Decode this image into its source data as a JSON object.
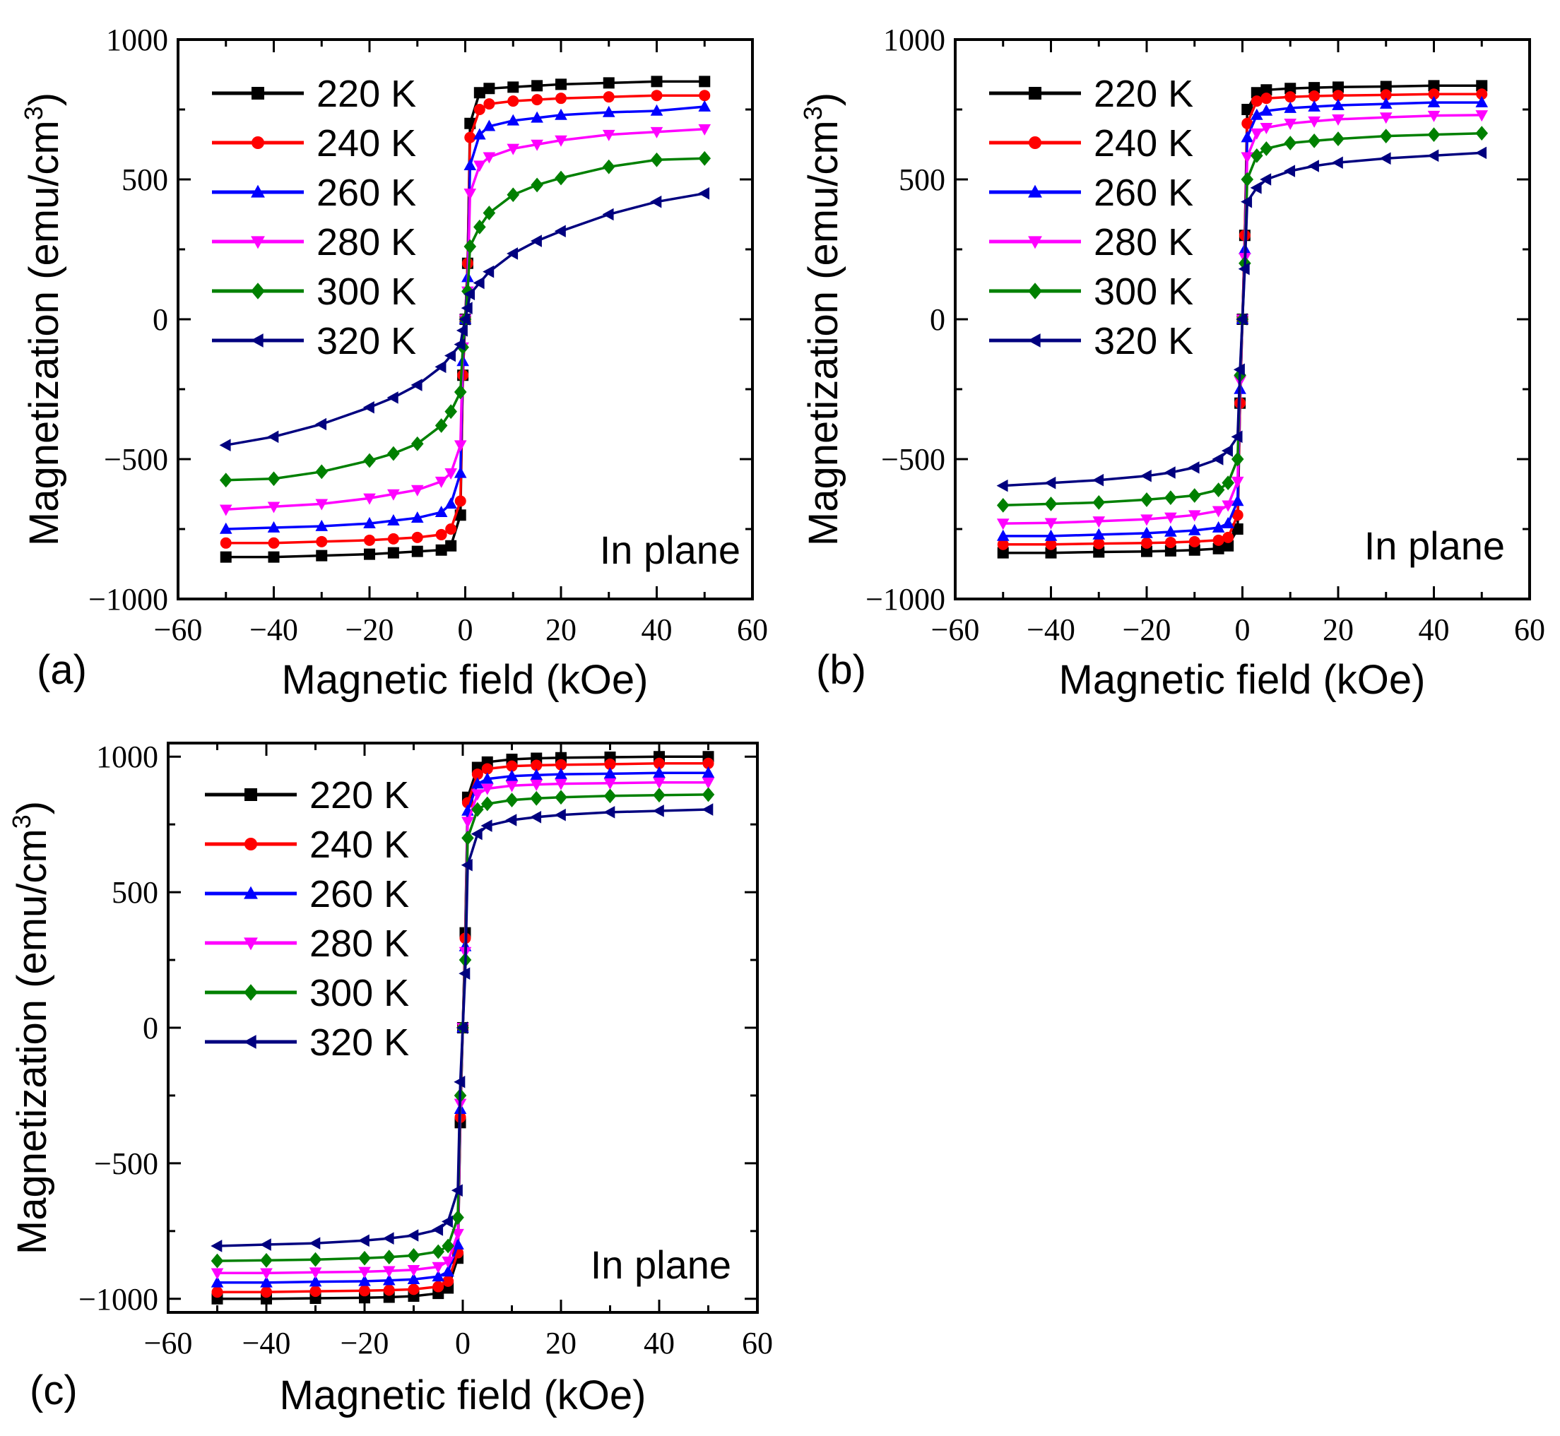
{
  "panels": [
    {
      "id": "a",
      "label": "(a)",
      "annotation": "In plane",
      "xlabel": "Magnetic field (kOe)",
      "ylabel": "Magnetization (emu/cm",
      "ylabel_sup": "3",
      "ylabel_close": ")"
    },
    {
      "id": "b",
      "label": "(b)",
      "annotation": "In plane",
      "xlabel": "Magnetic field (kOe)",
      "ylabel": "Magnetization (emu/cm",
      "ylabel_sup": "3",
      "ylabel_close": ")"
    },
    {
      "id": "c",
      "label": "(c)",
      "annotation": "In plane",
      "xlabel": "Magnetic field (kOe)",
      "ylabel": "Magnetization (emu/cm",
      "ylabel_sup": "3",
      "ylabel_close": ")"
    }
  ],
  "chart_data": [
    {
      "type": "line",
      "panel": "a",
      "xlim": [
        -60,
        60
      ],
      "ylim": [
        -1000,
        1000
      ],
      "xticks": [
        -60,
        -40,
        -20,
        0,
        20,
        40,
        60
      ],
      "yticks": [
        -1000,
        -500,
        0,
        500,
        1000
      ],
      "x_tick_labels": [
        "−60",
        "−40",
        "−20",
        "0",
        "20",
        "40",
        "60"
      ],
      "y_tick_labels": [
        "−1000",
        "−500",
        "0",
        "500",
        "1000"
      ],
      "legend_position": "top-left",
      "series": [
        {
          "name": "220 K",
          "color": "#000000",
          "marker": "square",
          "x": [
            -50,
            -40,
            -30,
            -20,
            -15,
            -10,
            -5,
            -3,
            -1,
            -0.5,
            0,
            0.5,
            1,
            3,
            5,
            10,
            15,
            20,
            30,
            40,
            50
          ],
          "y": [
            -850,
            -850,
            -845,
            -840,
            -835,
            -830,
            -825,
            -810,
            -700,
            -200,
            0,
            200,
            700,
            810,
            825,
            830,
            835,
            840,
            845,
            850,
            850
          ]
        },
        {
          "name": "240 K",
          "color": "#ff0000",
          "marker": "circle",
          "x": [
            -50,
            -40,
            -30,
            -20,
            -15,
            -10,
            -5,
            -3,
            -1,
            -0.5,
            0,
            0.5,
            1,
            3,
            5,
            10,
            15,
            20,
            30,
            40,
            50
          ],
          "y": [
            -800,
            -800,
            -795,
            -790,
            -785,
            -780,
            -770,
            -750,
            -650,
            -200,
            0,
            200,
            650,
            750,
            770,
            780,
            785,
            790,
            795,
            800,
            800
          ]
        },
        {
          "name": "260 K",
          "color": "#0000ff",
          "marker": "triangle-up",
          "x": [
            -50,
            -40,
            -30,
            -20,
            -15,
            -10,
            -5,
            -3,
            -1,
            -0.5,
            0,
            0.5,
            1,
            3,
            5,
            10,
            15,
            20,
            30,
            40,
            50
          ],
          "y": [
            -750,
            -745,
            -740,
            -730,
            -720,
            -710,
            -690,
            -660,
            -550,
            -150,
            0,
            150,
            550,
            660,
            690,
            710,
            720,
            730,
            740,
            745,
            760
          ]
        },
        {
          "name": "280 K",
          "color": "#ff00ff",
          "marker": "triangle-down",
          "x": [
            -50,
            -40,
            -30,
            -20,
            -15,
            -10,
            -5,
            -3,
            -1,
            -0.5,
            0,
            0.5,
            1,
            3,
            5,
            10,
            15,
            20,
            30,
            40,
            50
          ],
          "y": [
            -680,
            -670,
            -660,
            -640,
            -625,
            -610,
            -580,
            -550,
            -450,
            -100,
            0,
            100,
            450,
            550,
            580,
            610,
            625,
            640,
            660,
            670,
            680
          ]
        },
        {
          "name": "300 K",
          "color": "#008000",
          "marker": "diamond",
          "x": [
            -50,
            -40,
            -30,
            -20,
            -15,
            -10,
            -5,
            -3,
            -1,
            -0.5,
            0,
            0.5,
            1,
            3,
            5,
            10,
            15,
            20,
            30,
            40,
            50
          ],
          "y": [
            -575,
            -570,
            -545,
            -505,
            -480,
            -445,
            -380,
            -330,
            -260,
            -100,
            0,
            100,
            260,
            330,
            380,
            445,
            480,
            505,
            545,
            570,
            575
          ]
        },
        {
          "name": "320 K",
          "color": "#00007f",
          "marker": "triangle-left",
          "x": [
            -50,
            -40,
            -30,
            -20,
            -15,
            -10,
            -5,
            -3,
            -1,
            -0.5,
            0,
            0.5,
            1,
            3,
            5,
            10,
            15,
            20,
            30,
            40,
            50
          ],
          "y": [
            -450,
            -420,
            -375,
            -315,
            -280,
            -235,
            -170,
            -130,
            -90,
            -40,
            0,
            40,
            90,
            130,
            170,
            235,
            280,
            315,
            375,
            420,
            450
          ]
        }
      ]
    },
    {
      "type": "line",
      "panel": "b",
      "xlim": [
        -60,
        60
      ],
      "ylim": [
        -1000,
        1000
      ],
      "xticks": [
        -60,
        -40,
        -20,
        0,
        20,
        40,
        60
      ],
      "yticks": [
        -1000,
        -500,
        0,
        500,
        1000
      ],
      "x_tick_labels": [
        "−60",
        "−40",
        "−20",
        "0",
        "20",
        "40",
        "60"
      ],
      "y_tick_labels": [
        "−1000",
        "−500",
        "0",
        "500",
        "1000"
      ],
      "legend_position": "top-left",
      "series": [
        {
          "name": "220 K",
          "color": "#000000",
          "marker": "square",
          "x": [
            -50,
            -40,
            -30,
            -20,
            -15,
            -10,
            -5,
            -3,
            -1,
            -0.5,
            0,
            0.5,
            1,
            3,
            5,
            10,
            15,
            20,
            30,
            40,
            50
          ],
          "y": [
            -835,
            -835,
            -832,
            -830,
            -828,
            -825,
            -820,
            -810,
            -750,
            -300,
            0,
            300,
            750,
            810,
            820,
            825,
            828,
            830,
            832,
            835,
            835
          ]
        },
        {
          "name": "240 K",
          "color": "#ff0000",
          "marker": "circle",
          "x": [
            -50,
            -40,
            -30,
            -20,
            -15,
            -10,
            -5,
            -3,
            -1,
            -0.5,
            0,
            0.5,
            1,
            3,
            5,
            10,
            15,
            20,
            30,
            40,
            50
          ],
          "y": [
            -805,
            -805,
            -802,
            -800,
            -798,
            -795,
            -790,
            -780,
            -700,
            -300,
            0,
            300,
            700,
            780,
            790,
            795,
            798,
            800,
            802,
            805,
            805
          ]
        },
        {
          "name": "260 K",
          "color": "#0000ff",
          "marker": "triangle-up",
          "x": [
            -50,
            -40,
            -30,
            -20,
            -15,
            -10,
            -5,
            -3,
            -1,
            -0.5,
            0,
            0.5,
            1,
            3,
            5,
            10,
            15,
            20,
            30,
            40,
            50
          ],
          "y": [
            -775,
            -775,
            -770,
            -765,
            -760,
            -755,
            -745,
            -730,
            -650,
            -250,
            0,
            250,
            650,
            730,
            745,
            755,
            760,
            765,
            770,
            775,
            775
          ]
        },
        {
          "name": "280 K",
          "color": "#ff00ff",
          "marker": "triangle-down",
          "x": [
            -50,
            -40,
            -30,
            -20,
            -15,
            -10,
            -5,
            -3,
            -1,
            -0.5,
            0,
            0.5,
            1,
            3,
            5,
            10,
            15,
            20,
            30,
            40,
            50
          ],
          "y": [
            -730,
            -728,
            -722,
            -715,
            -708,
            -700,
            -685,
            -665,
            -580,
            -220,
            0,
            220,
            580,
            665,
            685,
            700,
            708,
            715,
            722,
            728,
            730
          ]
        },
        {
          "name": "300 K",
          "color": "#008000",
          "marker": "diamond",
          "x": [
            -50,
            -40,
            -30,
            -20,
            -15,
            -10,
            -5,
            -3,
            -1,
            -0.5,
            0,
            0.5,
            1,
            3,
            5,
            10,
            15,
            20,
            30,
            40,
            50
          ],
          "y": [
            -665,
            -660,
            -655,
            -645,
            -638,
            -630,
            -610,
            -585,
            -500,
            -200,
            0,
            200,
            500,
            585,
            610,
            630,
            638,
            645,
            655,
            660,
            665
          ]
        },
        {
          "name": "320 K",
          "color": "#00007f",
          "marker": "triangle-left",
          "x": [
            -50,
            -40,
            -30,
            -20,
            -15,
            -10,
            -5,
            -3,
            -1,
            -0.5,
            0,
            0.5,
            1,
            3,
            5,
            10,
            15,
            20,
            30,
            40,
            50
          ],
          "y": [
            -595,
            -585,
            -575,
            -560,
            -548,
            -530,
            -500,
            -470,
            -420,
            -180,
            0,
            180,
            420,
            470,
            500,
            530,
            548,
            560,
            575,
            585,
            595
          ]
        }
      ]
    },
    {
      "type": "line",
      "panel": "c",
      "xlim": [
        -60,
        60
      ],
      "ylim": [
        -1050,
        1050
      ],
      "xticks": [
        -60,
        -40,
        -20,
        0,
        20,
        40,
        60
      ],
      "yticks": [
        -1000,
        -500,
        0,
        500,
        1000
      ],
      "x_tick_labels": [
        "−60",
        "−40",
        "−20",
        "0",
        "20",
        "40",
        "60"
      ],
      "y_tick_labels": [
        "−1000",
        "−500",
        "0",
        "500",
        "1000"
      ],
      "legend_position": "top-left",
      "series": [
        {
          "name": "220 K",
          "color": "#000000",
          "marker": "square",
          "x": [
            -50,
            -40,
            -30,
            -20,
            -15,
            -10,
            -5,
            -3,
            -1,
            -0.5,
            0,
            0.5,
            1,
            3,
            5,
            10,
            15,
            20,
            30,
            40,
            50
          ],
          "y": [
            -1000,
            -1000,
            -998,
            -996,
            -994,
            -990,
            -980,
            -960,
            -850,
            -350,
            0,
            350,
            850,
            960,
            980,
            990,
            994,
            996,
            998,
            1000,
            1000
          ]
        },
        {
          "name": "240 K",
          "color": "#ff0000",
          "marker": "circle",
          "x": [
            -50,
            -40,
            -30,
            -20,
            -15,
            -10,
            -5,
            -3,
            -1,
            -0.5,
            0,
            0.5,
            1,
            3,
            5,
            10,
            15,
            20,
            30,
            40,
            50
          ],
          "y": [
            -975,
            -975,
            -972,
            -970,
            -968,
            -965,
            -955,
            -935,
            -830,
            -330,
            0,
            330,
            830,
            935,
            955,
            965,
            968,
            970,
            972,
            975,
            975
          ]
        },
        {
          "name": "260 K",
          "color": "#0000ff",
          "marker": "triangle-up",
          "x": [
            -50,
            -40,
            -30,
            -20,
            -15,
            -10,
            -5,
            -3,
            -1,
            -0.5,
            0,
            0.5,
            1,
            3,
            5,
            10,
            15,
            20,
            30,
            40,
            50
          ],
          "y": [
            -940,
            -940,
            -937,
            -935,
            -932,
            -928,
            -918,
            -900,
            -800,
            -300,
            0,
            300,
            800,
            900,
            918,
            928,
            932,
            935,
            937,
            940,
            940
          ]
        },
        {
          "name": "280 K",
          "color": "#ff00ff",
          "marker": "triangle-down",
          "x": [
            -50,
            -40,
            -30,
            -20,
            -15,
            -10,
            -5,
            -3,
            -1,
            -0.5,
            0,
            0.5,
            1,
            3,
            5,
            10,
            15,
            20,
            30,
            40,
            50
          ],
          "y": [
            -905,
            -905,
            -902,
            -900,
            -897,
            -893,
            -882,
            -862,
            -760,
            -280,
            0,
            280,
            760,
            862,
            882,
            893,
            897,
            900,
            902,
            905,
            905
          ]
        },
        {
          "name": "300 K",
          "color": "#008000",
          "marker": "diamond",
          "x": [
            -50,
            -40,
            -30,
            -20,
            -15,
            -10,
            -5,
            -3,
            -1,
            -0.5,
            0,
            0.5,
            1,
            3,
            5,
            10,
            15,
            20,
            30,
            40,
            50
          ],
          "y": [
            -860,
            -858,
            -855,
            -850,
            -846,
            -840,
            -826,
            -805,
            -700,
            -250,
            0,
            250,
            700,
            805,
            826,
            840,
            846,
            850,
            855,
            858,
            860
          ]
        },
        {
          "name": "320 K",
          "color": "#00007f",
          "marker": "triangle-left",
          "x": [
            -50,
            -40,
            -30,
            -20,
            -15,
            -10,
            -5,
            -3,
            -1,
            -0.5,
            0,
            0.5,
            1,
            3,
            5,
            10,
            15,
            20,
            30,
            40,
            50
          ],
          "y": [
            -805,
            -800,
            -795,
            -785,
            -777,
            -766,
            -745,
            -715,
            -600,
            -200,
            0,
            200,
            600,
            715,
            745,
            766,
            777,
            785,
            795,
            800,
            805
          ]
        }
      ]
    }
  ]
}
